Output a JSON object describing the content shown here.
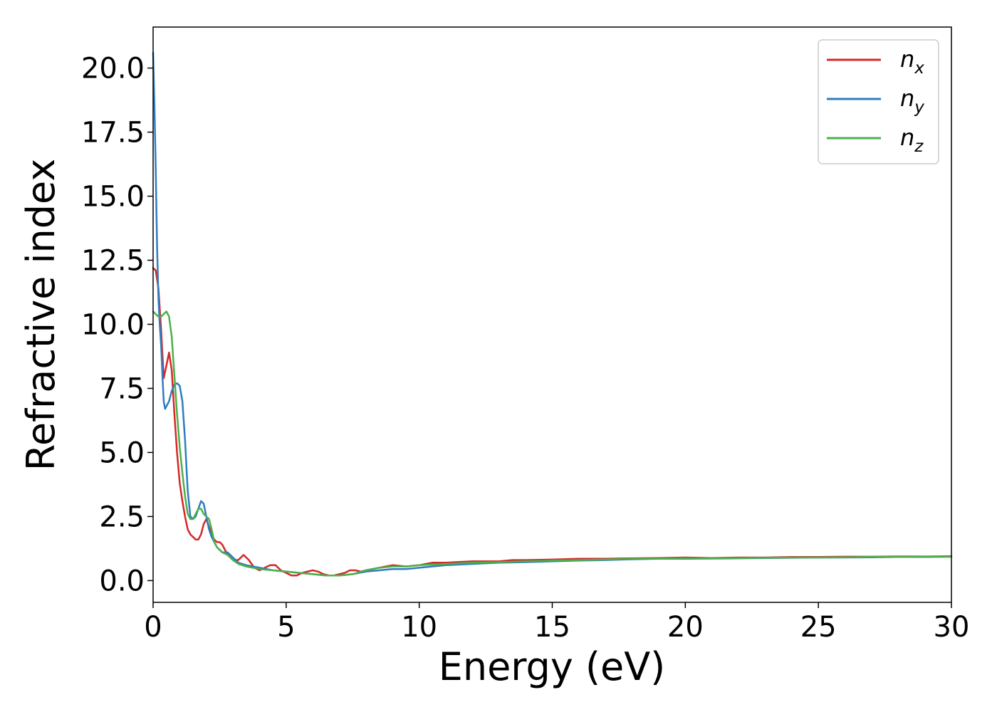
{
  "chart_data": {
    "type": "line",
    "title": "",
    "xlabel": "Energy (eV)",
    "ylabel": "Refractive index",
    "xlim": [
      0,
      30
    ],
    "ylim": [
      -0.85,
      21.6
    ],
    "xticks": [
      0,
      5,
      10,
      15,
      20,
      25,
      30
    ],
    "xtick_labels": [
      "0",
      "5",
      "10",
      "15",
      "20",
      "25",
      "30"
    ],
    "yticks": [
      0,
      2.5,
      5,
      7.5,
      10,
      12.5,
      15,
      17.5,
      20
    ],
    "ytick_labels": [
      "0.0",
      "2.5",
      "5.0",
      "7.5",
      "10.0",
      "12.5",
      "15.0",
      "17.5",
      "20.0"
    ],
    "grid": false,
    "legend_position": "top-right",
    "series": [
      {
        "name": "n",
        "subscript": "x",
        "color": "#d62728",
        "x": [
          0,
          0.1,
          0.2,
          0.3,
          0.4,
          0.5,
          0.6,
          0.7,
          0.8,
          0.9,
          1.0,
          1.1,
          1.2,
          1.3,
          1.4,
          1.5,
          1.6,
          1.7,
          1.8,
          1.9,
          2.0,
          2.1,
          2.2,
          2.3,
          2.4,
          2.5,
          2.6,
          2.7,
          2.8,
          2.9,
          3.0,
          3.2,
          3.4,
          3.6,
          3.8,
          4.0,
          4.2,
          4.4,
          4.6,
          4.8,
          5.0,
          5.2,
          5.4,
          5.6,
          5.8,
          6.0,
          6.2,
          6.4,
          6.6,
          6.8,
          7.0,
          7.2,
          7.4,
          7.6,
          7.8,
          8.0,
          8.5,
          9.0,
          9.5,
          10.0,
          10.5,
          11.0,
          12.0,
          13.0,
          13.5,
          14.0,
          15.0,
          16.0,
          17.0,
          18.0,
          19.0,
          20.0,
          21.0,
          22.0,
          23.0,
          24.0,
          25.0,
          26.0,
          27.0,
          28.0,
          29.0,
          30.0
        ],
        "y": [
          12.2,
          12.1,
          11.4,
          9.8,
          7.9,
          8.4,
          8.9,
          8.2,
          6.5,
          5.0,
          3.8,
          3.1,
          2.5,
          2.0,
          1.8,
          1.7,
          1.6,
          1.6,
          1.8,
          2.2,
          2.4,
          2.1,
          1.8,
          1.6,
          1.5,
          1.5,
          1.4,
          1.2,
          1.0,
          0.9,
          0.8,
          0.8,
          1.0,
          0.8,
          0.5,
          0.4,
          0.5,
          0.6,
          0.6,
          0.4,
          0.3,
          0.2,
          0.2,
          0.3,
          0.35,
          0.4,
          0.35,
          0.25,
          0.2,
          0.2,
          0.25,
          0.3,
          0.4,
          0.4,
          0.35,
          0.4,
          0.5,
          0.6,
          0.55,
          0.6,
          0.7,
          0.7,
          0.75,
          0.75,
          0.8,
          0.8,
          0.82,
          0.85,
          0.85,
          0.87,
          0.88,
          0.9,
          0.88,
          0.9,
          0.9,
          0.92,
          0.92,
          0.93,
          0.93,
          0.94,
          0.94,
          0.95
        ]
      },
      {
        "name": "n",
        "subscript": "y",
        "color": "#2f7dbf",
        "x": [
          0,
          0.05,
          0.1,
          0.15,
          0.2,
          0.25,
          0.3,
          0.35,
          0.4,
          0.45,
          0.5,
          0.6,
          0.7,
          0.8,
          0.9,
          1.0,
          1.1,
          1.2,
          1.3,
          1.4,
          1.5,
          1.6,
          1.7,
          1.8,
          1.9,
          2.0,
          2.1,
          2.2,
          2.3,
          2.4,
          2.5,
          2.6,
          2.7,
          2.8,
          3.0,
          3.2,
          3.5,
          4.0,
          4.5,
          5.0,
          5.5,
          6.0,
          6.5,
          7.0,
          7.5,
          8.0,
          8.5,
          9.0,
          9.5,
          10.0,
          11.0,
          12.0,
          13.0,
          14.0,
          15.0,
          16.0,
          17.0,
          18.0,
          19.0,
          20.0,
          21.0,
          22.0,
          23.0,
          24.0,
          25.0,
          26.0,
          27.0,
          28.0,
          29.0,
          30.0
        ],
        "y": [
          20.6,
          18.5,
          16.0,
          13.0,
          11.0,
          10.0,
          9.2,
          8.0,
          7.0,
          6.7,
          6.8,
          7.0,
          7.4,
          7.65,
          7.7,
          7.6,
          7.0,
          5.5,
          3.5,
          2.5,
          2.4,
          2.5,
          2.8,
          3.1,
          3.0,
          2.5,
          2.0,
          1.7,
          1.5,
          1.3,
          1.2,
          1.1,
          1.1,
          1.1,
          0.9,
          0.7,
          0.6,
          0.5,
          0.4,
          0.35,
          0.3,
          0.25,
          0.2,
          0.2,
          0.25,
          0.35,
          0.4,
          0.45,
          0.45,
          0.5,
          0.6,
          0.65,
          0.7,
          0.72,
          0.75,
          0.78,
          0.8,
          0.83,
          0.85,
          0.85,
          0.86,
          0.87,
          0.88,
          0.89,
          0.9,
          0.9,
          0.91,
          0.92,
          0.92,
          0.93
        ]
      },
      {
        "name": "n",
        "subscript": "z",
        "color": "#4daf4a",
        "x": [
          0,
          0.1,
          0.2,
          0.3,
          0.4,
          0.5,
          0.6,
          0.7,
          0.8,
          0.9,
          1.0,
          1.1,
          1.2,
          1.3,
          1.4,
          1.5,
          1.6,
          1.7,
          1.8,
          1.9,
          2.0,
          2.1,
          2.2,
          2.3,
          2.4,
          2.5,
          2.6,
          2.7,
          2.8,
          3.0,
          3.2,
          3.5,
          4.0,
          4.5,
          5.0,
          5.5,
          6.0,
          6.5,
          7.0,
          7.5,
          8.0,
          8.5,
          9.0,
          9.5,
          10.0,
          11.0,
          12.0,
          13.0,
          14.0,
          15.0,
          16.0,
          17.0,
          18.0,
          19.0,
          20.0,
          21.0,
          22.0,
          23.0,
          24.0,
          25.0,
          26.0,
          27.0,
          28.0,
          29.0,
          30.0
        ],
        "y": [
          10.5,
          10.4,
          10.3,
          10.3,
          10.4,
          10.5,
          10.3,
          9.5,
          8.0,
          6.5,
          5.2,
          4.2,
          3.3,
          2.6,
          2.4,
          2.4,
          2.6,
          2.8,
          2.8,
          2.6,
          2.5,
          2.4,
          2.0,
          1.5,
          1.3,
          1.2,
          1.1,
          1.05,
          1.0,
          0.8,
          0.65,
          0.55,
          0.45,
          0.4,
          0.35,
          0.3,
          0.25,
          0.2,
          0.2,
          0.25,
          0.4,
          0.5,
          0.55,
          0.55,
          0.6,
          0.65,
          0.7,
          0.72,
          0.75,
          0.78,
          0.8,
          0.82,
          0.85,
          0.86,
          0.87,
          0.87,
          0.88,
          0.89,
          0.9,
          0.9,
          0.91,
          0.92,
          0.92,
          0.93,
          0.93
        ]
      }
    ]
  }
}
